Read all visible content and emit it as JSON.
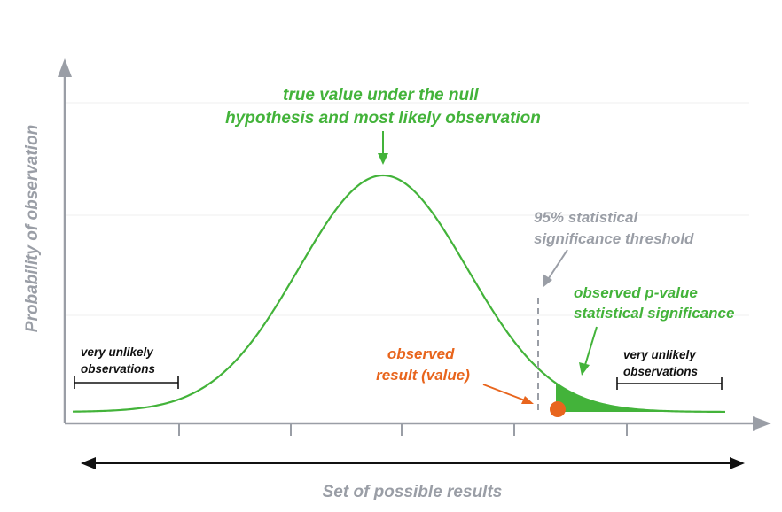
{
  "colors": {
    "green": "#43b33a",
    "gray": "#9a9ea6",
    "orange": "#e8651d",
    "black": "#111111",
    "grid": "#eeeeee"
  },
  "labels": {
    "null_hypothesis": [
      "true value under the null",
      "hypothesis and most likely observation"
    ],
    "threshold": [
      "95% statistical",
      "significance threshold"
    ],
    "p_value": [
      "observed p-value",
      "statistical significance"
    ],
    "observed_result": [
      "observed",
      "result (value)"
    ],
    "unlikely_left": [
      "very unlikely",
      "observations"
    ],
    "unlikely_right": [
      "very unlikely",
      "observations"
    ]
  },
  "axes": {
    "y_label": "Probability of observation",
    "x_label": "Set of possible results"
  },
  "icons": {
    "y_axis_arrow": "arrow-up-icon",
    "x_axis_arrow": "arrow-right-icon",
    "range_arrow": "double-arrow-icon",
    "observed_point": "dot-icon"
  }
}
